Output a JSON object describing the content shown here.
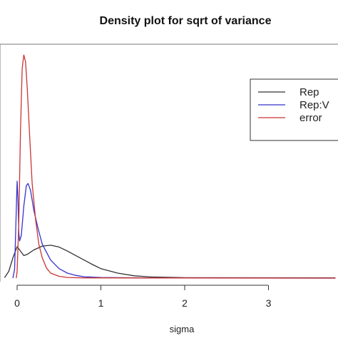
{
  "chart_data": {
    "type": "line",
    "title": "Density plot for sqrt of variance",
    "xlabel": "sigma",
    "ylabel": "",
    "xlim": [
      -0.2,
      3.8
    ],
    "ylim": [
      0,
      10.2
    ],
    "x_ticks": [
      0,
      1,
      2,
      3
    ],
    "x_tick_labels": [
      "0",
      "1",
      "2",
      "3"
    ],
    "grid": false,
    "legend": {
      "placement": "top-right"
    },
    "series": [
      {
        "name": "Rep",
        "color": "#333333",
        "points": [
          [
            -0.15,
            0.02
          ],
          [
            -0.1,
            0.3
          ],
          [
            -0.05,
            0.9
          ],
          [
            0.0,
            1.4
          ],
          [
            0.04,
            1.2
          ],
          [
            0.08,
            1.0
          ],
          [
            0.12,
            1.05
          ],
          [
            0.2,
            1.25
          ],
          [
            0.3,
            1.42
          ],
          [
            0.4,
            1.46
          ],
          [
            0.5,
            1.38
          ],
          [
            0.6,
            1.2
          ],
          [
            0.7,
            1.0
          ],
          [
            0.8,
            0.8
          ],
          [
            0.9,
            0.6
          ],
          [
            1.0,
            0.42
          ],
          [
            1.2,
            0.22
          ],
          [
            1.4,
            0.1
          ],
          [
            1.6,
            0.05
          ],
          [
            2.0,
            0.02
          ],
          [
            3.8,
            0.01
          ]
        ]
      },
      {
        "name": "Rep:V",
        "color": "#3333cc",
        "points": [
          [
            -0.05,
            0.0
          ],
          [
            -0.03,
            0.4
          ],
          [
            -0.01,
            3.0
          ],
          [
            0.0,
            4.3
          ],
          [
            0.01,
            3.5
          ],
          [
            0.02,
            2.0
          ],
          [
            0.03,
            1.65
          ],
          [
            0.05,
            1.9
          ],
          [
            0.08,
            3.2
          ],
          [
            0.11,
            4.1
          ],
          [
            0.13,
            4.2
          ],
          [
            0.16,
            3.9
          ],
          [
            0.2,
            3.0
          ],
          [
            0.25,
            2.2
          ],
          [
            0.3,
            1.5
          ],
          [
            0.4,
            0.8
          ],
          [
            0.5,
            0.42
          ],
          [
            0.6,
            0.22
          ],
          [
            0.7,
            0.12
          ],
          [
            0.8,
            0.06
          ],
          [
            1.0,
            0.03
          ],
          [
            1.5,
            0.01
          ],
          [
            3.8,
            0.0
          ]
        ]
      },
      {
        "name": "error",
        "color": "#cc3333",
        "points": [
          [
            -0.01,
            0.0
          ],
          [
            0.0,
            0.3
          ],
          [
            0.02,
            2.5
          ],
          [
            0.04,
            6.5
          ],
          [
            0.06,
            9.3
          ],
          [
            0.08,
            9.9
          ],
          [
            0.1,
            9.6
          ],
          [
            0.12,
            8.5
          ],
          [
            0.15,
            6.3
          ],
          [
            0.18,
            4.2
          ],
          [
            0.22,
            2.6
          ],
          [
            0.26,
            1.5
          ],
          [
            0.3,
            0.9
          ],
          [
            0.35,
            0.45
          ],
          [
            0.4,
            0.22
          ],
          [
            0.5,
            0.08
          ],
          [
            0.6,
            0.03
          ],
          [
            0.8,
            0.01
          ],
          [
            3.8,
            0.0
          ]
        ]
      }
    ]
  }
}
